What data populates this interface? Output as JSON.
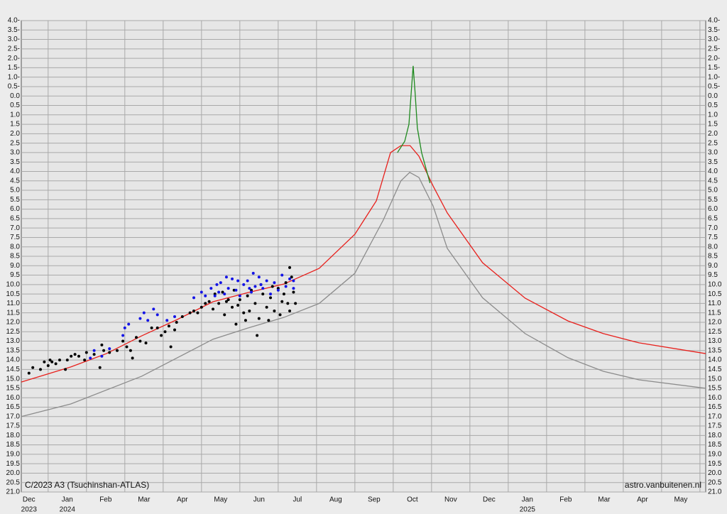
{
  "chart_data": {
    "type": "line",
    "title": "C/2023 A3 (Tsuchinshan-ATLAS)",
    "source": "astro.vanbuitenen.nl",
    "xlim": [
      0.3,
      18.15
    ],
    "xticks": [
      {
        "value": 0.5,
        "label": "Dec"
      },
      {
        "value": 1.5,
        "label": "Jan"
      },
      {
        "value": 2.5,
        "label": "Feb"
      },
      {
        "value": 3.5,
        "label": "Mar"
      },
      {
        "value": 4.5,
        "label": "Apr"
      },
      {
        "value": 5.5,
        "label": "May"
      },
      {
        "value": 6.5,
        "label": "Jun"
      },
      {
        "value": 7.5,
        "label": "Jul"
      },
      {
        "value": 8.5,
        "label": "Aug"
      },
      {
        "value": 9.5,
        "label": "Sep"
      },
      {
        "value": 10.5,
        "label": "Oct"
      },
      {
        "value": 11.5,
        "label": "Nov"
      },
      {
        "value": 12.5,
        "label": "Dec"
      },
      {
        "value": 13.5,
        "label": "Jan"
      },
      {
        "value": 14.5,
        "label": "Feb"
      },
      {
        "value": 15.5,
        "label": "Mar"
      },
      {
        "value": 16.5,
        "label": "Apr"
      },
      {
        "value": 17.5,
        "label": "May"
      }
    ],
    "year_labels": [
      {
        "value": 0.5,
        "label": "2023"
      },
      {
        "value": 1.5,
        "label": "2024"
      },
      {
        "value": 13.5,
        "label": "2025"
      }
    ],
    "xgrid": [
      1,
      2,
      3,
      4,
      5,
      6,
      7,
      8,
      9,
      10,
      11,
      12,
      13,
      14,
      15,
      16,
      17,
      18
    ],
    "ylim": [
      21,
      -4
    ],
    "yticks": [
      {
        "value": -4,
        "label": "4.0-"
      },
      {
        "value": -3.5,
        "label": "3.5-"
      },
      {
        "value": -3,
        "label": "3.0-"
      },
      {
        "value": -2.5,
        "label": "2.5-"
      },
      {
        "value": -2,
        "label": "2.0-"
      },
      {
        "value": -1.5,
        "label": "1.5-"
      },
      {
        "value": -1,
        "label": "1.0-"
      },
      {
        "value": -0.5,
        "label": "0.5-"
      },
      {
        "value": 0,
        "label": "0.0"
      },
      0.5,
      {
        "value": 1,
        "label": "1.0"
      },
      1.5,
      {
        "value": 2,
        "label": "2.0"
      },
      2.5,
      {
        "value": 3,
        "label": "3.0"
      },
      3.5,
      {
        "value": 4,
        "label": "4.0"
      },
      4.5,
      {
        "value": 5,
        "label": "5.0"
      },
      5.5,
      {
        "value": 6,
        "label": "6.0"
      },
      6.5,
      {
        "value": 7,
        "label": "7.0"
      },
      7.5,
      {
        "value": 8,
        "label": "8.0"
      },
      8.5,
      {
        "value": 9,
        "label": "9.0"
      },
      9.5,
      {
        "value": 10,
        "label": "10.0"
      },
      10.5,
      {
        "value": 11,
        "label": "11.0"
      },
      11.5,
      {
        "value": 12,
        "label": "12.0"
      },
      12.5,
      {
        "value": 13,
        "label": "13.0"
      },
      13.5,
      {
        "value": 14,
        "label": "14.0"
      },
      14.5,
      {
        "value": 15,
        "label": "15.0"
      },
      15.5,
      {
        "value": 16,
        "label": "16.0"
      },
      16.5,
      {
        "value": 17,
        "label": "17.0"
      },
      17.5,
      {
        "value": 18,
        "label": "18.0"
      },
      18.5,
      {
        "value": 19,
        "label": "19.0"
      },
      19.5,
      {
        "value": 20,
        "label": "20.0"
      },
      20.5,
      {
        "value": 21,
        "label": "21.0"
      }
    ],
    "grid": true,
    "series": [
      {
        "mode": "line",
        "color": "#8c8c8c",
        "x": [
          0.3,
          1.59,
          3.44,
          5.3,
          6.22,
          7.15,
          8.07,
          9.0,
          9.74,
          10.2,
          10.43,
          10.67,
          11.04,
          11.41,
          12.33,
          13.44,
          14.56,
          15.48,
          16.41,
          18.15
        ],
        "values": [
          17.0,
          16.33,
          14.86,
          12.9,
          12.3,
          11.74,
          11.0,
          9.4,
          6.58,
          4.5,
          4.05,
          4.32,
          5.83,
          8.08,
          10.7,
          12.6,
          13.88,
          14.6,
          15.05,
          15.5
        ]
      },
      {
        "mode": "line",
        "color": "#e8201c",
        "x": [
          0.3,
          1.59,
          2.52,
          3.44,
          4.37,
          5.3,
          6.22,
          7.15,
          8.07,
          9.0,
          9.56,
          9.93,
          10.2,
          10.44,
          10.67,
          11.04,
          11.41,
          12.33,
          13.44,
          14.56,
          15.48,
          16.41,
          18.15
        ],
        "values": [
          15.17,
          14.37,
          13.66,
          12.72,
          11.85,
          10.91,
          10.42,
          9.97,
          9.14,
          7.33,
          5.56,
          3.0,
          2.63,
          2.63,
          3.19,
          4.77,
          6.2,
          8.84,
          10.72,
          11.93,
          12.6,
          13.09,
          13.66
        ]
      },
      {
        "mode": "line",
        "color": "#1e8a1e",
        "x": [
          10.11,
          10.3,
          10.41,
          10.47,
          10.52,
          10.57,
          10.63,
          10.74,
          10.96
        ],
        "values": [
          3.0,
          2.4,
          1.5,
          -0.2,
          -1.6,
          -0.2,
          1.7,
          3.0,
          4.62
        ]
      },
      {
        "mode": "markers",
        "color": "#000000",
        "x": [
          0.5,
          0.6,
          0.8,
          0.9,
          1.0,
          1.05,
          1.1,
          1.2,
          1.3,
          1.45,
          1.5,
          1.6,
          1.7,
          1.8,
          1.95,
          2.0,
          2.2,
          2.35,
          2.4,
          2.45,
          2.6,
          2.8,
          2.95,
          3.05,
          3.15,
          3.2,
          3.3,
          3.4,
          3.55,
          3.7,
          3.85,
          3.95,
          4.05,
          4.15,
          4.2,
          4.3,
          4.35,
          4.5,
          4.7,
          4.8,
          4.9,
          5.0,
          5.1,
          5.2,
          5.3,
          5.35,
          5.45,
          5.55,
          5.6,
          5.7,
          5.8,
          5.85,
          5.9,
          6.0,
          6.1,
          6.2,
          6.3,
          6.4,
          6.45,
          6.5,
          6.6,
          6.7,
          6.8,
          6.9,
          7.0,
          7.05,
          7.1,
          7.2,
          7.25,
          7.3,
          7.35,
          7.4,
          7.45,
          6.15,
          6.55,
          6.85,
          7.15,
          5.95,
          6.25,
          5.65,
          6.75,
          7.3
        ],
        "values": [
          14.7,
          14.4,
          14.5,
          14.1,
          14.3,
          14.0,
          14.1,
          14.2,
          14.0,
          14.5,
          14.0,
          13.8,
          13.7,
          13.8,
          14.0,
          13.6,
          13.7,
          14.4,
          13.2,
          13.5,
          13.6,
          13.5,
          13.0,
          13.3,
          13.5,
          13.9,
          12.8,
          13.0,
          13.1,
          12.3,
          12.3,
          12.7,
          12.5,
          12.2,
          13.3,
          12.4,
          12.0,
          11.7,
          11.5,
          11.4,
          11.5,
          11.2,
          11.0,
          10.9,
          11.3,
          10.5,
          11.0,
          10.4,
          11.6,
          10.8,
          11.2,
          10.3,
          12.1,
          10.8,
          11.5,
          10.6,
          10.3,
          11.0,
          12.7,
          11.8,
          10.5,
          11.2,
          10.7,
          11.4,
          10.2,
          11.6,
          10.9,
          9.9,
          11.0,
          11.4,
          9.6,
          10.4,
          11.0,
          11.9,
          10.0,
          10.1,
          10.5,
          11.1,
          11.4,
          10.9,
          11.9,
          9.1
        ]
      },
      {
        "mode": "markers",
        "color": "#1414e6",
        "x": [
          2.1,
          2.2,
          2.4,
          2.6,
          2.95,
          3.0,
          3.1,
          3.4,
          3.5,
          3.6,
          3.75,
          3.85,
          4.1,
          4.3,
          4.8,
          5.0,
          5.1,
          5.25,
          5.4,
          5.5,
          5.6,
          5.7,
          5.8,
          5.9,
          6.0,
          6.1,
          6.2,
          6.3,
          6.4,
          6.5,
          6.6,
          6.7,
          6.8,
          6.9,
          7.0,
          7.1,
          7.2,
          7.3,
          7.4,
          7.4,
          5.35,
          5.65,
          5.95,
          6.25,
          6.55,
          6.35,
          5.45
        ],
        "values": [
          13.9,
          13.5,
          13.8,
          13.4,
          12.7,
          12.3,
          12.1,
          11.8,
          11.5,
          11.9,
          11.3,
          11.6,
          11.9,
          11.7,
          10.7,
          10.4,
          10.6,
          10.2,
          10.0,
          9.9,
          10.5,
          10.2,
          9.7,
          10.3,
          10.6,
          10.0,
          9.8,
          10.4,
          10.1,
          9.6,
          10.2,
          9.8,
          10.5,
          9.9,
          10.3,
          9.5,
          10.1,
          9.7,
          10.2,
          9.8,
          10.6,
          9.6,
          9.8,
          10.2,
          10.0,
          9.4,
          10.4
        ]
      }
    ]
  }
}
